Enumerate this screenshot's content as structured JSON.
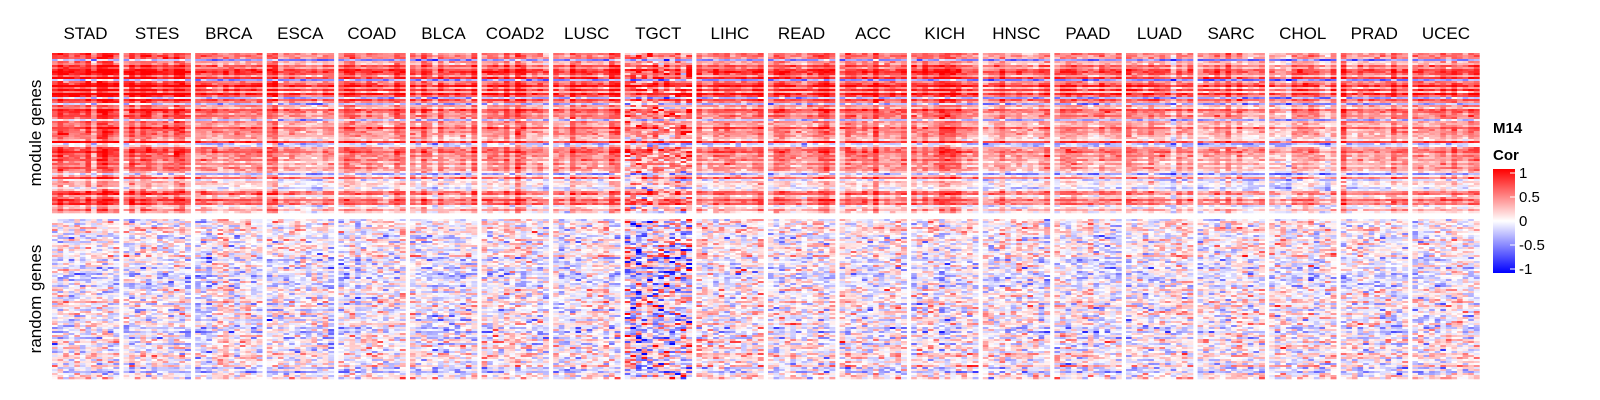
{
  "chart_data": {
    "type": "heatmap",
    "columns": [
      "STAD",
      "STES",
      "BRCA",
      "ESCA",
      "COAD",
      "BLCA",
      "COAD2",
      "LUSC",
      "TGCT",
      "LIHC",
      "READ",
      "ACC",
      "KICH",
      "HNSC",
      "PAAD",
      "LUAD",
      "SARC",
      "CHOL",
      "PRAD",
      "UCEC"
    ],
    "row_groups": [
      {
        "label": "module genes",
        "approx_mean_correlation": [
          0.55,
          0.55,
          0.35,
          0.35,
          0.35,
          0.3,
          0.35,
          0.35,
          0.3,
          0.35,
          0.35,
          0.35,
          0.35,
          0.25,
          0.3,
          0.25,
          0.25,
          0.2,
          0.3,
          0.3
        ]
      },
      {
        "label": "random genes",
        "approx_mean_correlation": [
          0,
          0,
          0,
          0,
          0,
          0,
          0,
          0,
          0,
          0,
          0,
          0,
          0,
          0,
          0,
          0,
          0,
          0,
          0,
          0
        ]
      }
    ],
    "color_range": [
      -1,
      1
    ],
    "colors": {
      "low": "#0000ff",
      "mid": "#ffffff",
      "high": "#ff0000"
    },
    "legend": {
      "title_line1": "M14",
      "title_line2": "Cor",
      "ticks": [
        "1",
        "0.5",
        "0",
        "-0.5",
        "-1"
      ],
      "placement": "right"
    }
  }
}
